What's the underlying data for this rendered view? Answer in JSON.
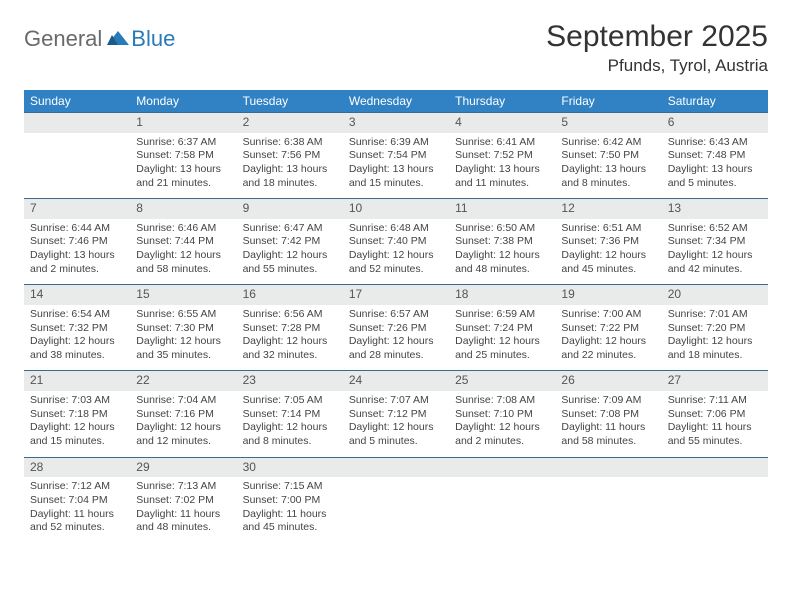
{
  "logo": {
    "text1": "General",
    "text2": "Blue"
  },
  "title": "September 2025",
  "location": "Pfunds, Tyrol, Austria",
  "colors": {
    "header_bg": "#3082c4",
    "header_text": "#ffffff",
    "daynum_bg": "#e9eaea",
    "row_divider": "#3a6a8f",
    "logo_gray": "#6a6a6a",
    "logo_blue": "#2a7ab8"
  },
  "weekdays": [
    "Sunday",
    "Monday",
    "Tuesday",
    "Wednesday",
    "Thursday",
    "Friday",
    "Saturday"
  ],
  "weeks": [
    [
      null,
      {
        "n": "1",
        "sr": "Sunrise: 6:37 AM",
        "ss": "Sunset: 7:58 PM",
        "dl": "Daylight: 13 hours and 21 minutes."
      },
      {
        "n": "2",
        "sr": "Sunrise: 6:38 AM",
        "ss": "Sunset: 7:56 PM",
        "dl": "Daylight: 13 hours and 18 minutes."
      },
      {
        "n": "3",
        "sr": "Sunrise: 6:39 AM",
        "ss": "Sunset: 7:54 PM",
        "dl": "Daylight: 13 hours and 15 minutes."
      },
      {
        "n": "4",
        "sr": "Sunrise: 6:41 AM",
        "ss": "Sunset: 7:52 PM",
        "dl": "Daylight: 13 hours and 11 minutes."
      },
      {
        "n": "5",
        "sr": "Sunrise: 6:42 AM",
        "ss": "Sunset: 7:50 PM",
        "dl": "Daylight: 13 hours and 8 minutes."
      },
      {
        "n": "6",
        "sr": "Sunrise: 6:43 AM",
        "ss": "Sunset: 7:48 PM",
        "dl": "Daylight: 13 hours and 5 minutes."
      }
    ],
    [
      {
        "n": "7",
        "sr": "Sunrise: 6:44 AM",
        "ss": "Sunset: 7:46 PM",
        "dl": "Daylight: 13 hours and 2 minutes."
      },
      {
        "n": "8",
        "sr": "Sunrise: 6:46 AM",
        "ss": "Sunset: 7:44 PM",
        "dl": "Daylight: 12 hours and 58 minutes."
      },
      {
        "n": "9",
        "sr": "Sunrise: 6:47 AM",
        "ss": "Sunset: 7:42 PM",
        "dl": "Daylight: 12 hours and 55 minutes."
      },
      {
        "n": "10",
        "sr": "Sunrise: 6:48 AM",
        "ss": "Sunset: 7:40 PM",
        "dl": "Daylight: 12 hours and 52 minutes."
      },
      {
        "n": "11",
        "sr": "Sunrise: 6:50 AM",
        "ss": "Sunset: 7:38 PM",
        "dl": "Daylight: 12 hours and 48 minutes."
      },
      {
        "n": "12",
        "sr": "Sunrise: 6:51 AM",
        "ss": "Sunset: 7:36 PM",
        "dl": "Daylight: 12 hours and 45 minutes."
      },
      {
        "n": "13",
        "sr": "Sunrise: 6:52 AM",
        "ss": "Sunset: 7:34 PM",
        "dl": "Daylight: 12 hours and 42 minutes."
      }
    ],
    [
      {
        "n": "14",
        "sr": "Sunrise: 6:54 AM",
        "ss": "Sunset: 7:32 PM",
        "dl": "Daylight: 12 hours and 38 minutes."
      },
      {
        "n": "15",
        "sr": "Sunrise: 6:55 AM",
        "ss": "Sunset: 7:30 PM",
        "dl": "Daylight: 12 hours and 35 minutes."
      },
      {
        "n": "16",
        "sr": "Sunrise: 6:56 AM",
        "ss": "Sunset: 7:28 PM",
        "dl": "Daylight: 12 hours and 32 minutes."
      },
      {
        "n": "17",
        "sr": "Sunrise: 6:57 AM",
        "ss": "Sunset: 7:26 PM",
        "dl": "Daylight: 12 hours and 28 minutes."
      },
      {
        "n": "18",
        "sr": "Sunrise: 6:59 AM",
        "ss": "Sunset: 7:24 PM",
        "dl": "Daylight: 12 hours and 25 minutes."
      },
      {
        "n": "19",
        "sr": "Sunrise: 7:00 AM",
        "ss": "Sunset: 7:22 PM",
        "dl": "Daylight: 12 hours and 22 minutes."
      },
      {
        "n": "20",
        "sr": "Sunrise: 7:01 AM",
        "ss": "Sunset: 7:20 PM",
        "dl": "Daylight: 12 hours and 18 minutes."
      }
    ],
    [
      {
        "n": "21",
        "sr": "Sunrise: 7:03 AM",
        "ss": "Sunset: 7:18 PM",
        "dl": "Daylight: 12 hours and 15 minutes."
      },
      {
        "n": "22",
        "sr": "Sunrise: 7:04 AM",
        "ss": "Sunset: 7:16 PM",
        "dl": "Daylight: 12 hours and 12 minutes."
      },
      {
        "n": "23",
        "sr": "Sunrise: 7:05 AM",
        "ss": "Sunset: 7:14 PM",
        "dl": "Daylight: 12 hours and 8 minutes."
      },
      {
        "n": "24",
        "sr": "Sunrise: 7:07 AM",
        "ss": "Sunset: 7:12 PM",
        "dl": "Daylight: 12 hours and 5 minutes."
      },
      {
        "n": "25",
        "sr": "Sunrise: 7:08 AM",
        "ss": "Sunset: 7:10 PM",
        "dl": "Daylight: 12 hours and 2 minutes."
      },
      {
        "n": "26",
        "sr": "Sunrise: 7:09 AM",
        "ss": "Sunset: 7:08 PM",
        "dl": "Daylight: 11 hours and 58 minutes."
      },
      {
        "n": "27",
        "sr": "Sunrise: 7:11 AM",
        "ss": "Sunset: 7:06 PM",
        "dl": "Daylight: 11 hours and 55 minutes."
      }
    ],
    [
      {
        "n": "28",
        "sr": "Sunrise: 7:12 AM",
        "ss": "Sunset: 7:04 PM",
        "dl": "Daylight: 11 hours and 52 minutes."
      },
      {
        "n": "29",
        "sr": "Sunrise: 7:13 AM",
        "ss": "Sunset: 7:02 PM",
        "dl": "Daylight: 11 hours and 48 minutes."
      },
      {
        "n": "30",
        "sr": "Sunrise: 7:15 AM",
        "ss": "Sunset: 7:00 PM",
        "dl": "Daylight: 11 hours and 45 minutes."
      },
      null,
      null,
      null,
      null
    ]
  ]
}
